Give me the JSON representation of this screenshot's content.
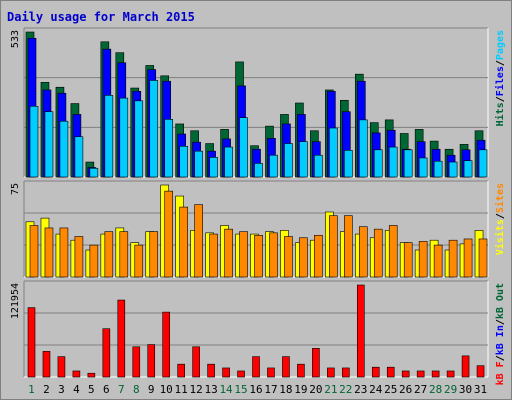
{
  "title": "Daily usage for March 2015",
  "colors": {
    "hits": "#006633",
    "files": "#0000ff",
    "pages": "#00ccff",
    "visits": "#ffff00",
    "sites": "#ff8800",
    "kbin": "#ff0000",
    "label_dark": "#000000",
    "label_green": "#006633",
    "plot_bg": "#c0c0c0"
  },
  "chart_data": [
    {
      "type": "bar",
      "name": "top",
      "ymax_label": "533",
      "ylim": [
        0,
        533
      ],
      "legend_right": [
        {
          "text": "Hits",
          "color": "#006633"
        },
        {
          "text": "/",
          "color": "#000000"
        },
        {
          "text": "Files",
          "color": "#0000ff"
        },
        {
          "text": "/",
          "color": "#000000"
        },
        {
          "text": "Pages",
          "color": "#00ccff"
        }
      ],
      "categories": [
        "1",
        "2",
        "3",
        "4",
        "5",
        "6",
        "7",
        "8",
        "9",
        "10",
        "11",
        "12",
        "13",
        "14",
        "15",
        "16",
        "17",
        "18",
        "19",
        "20",
        "21",
        "22",
        "23",
        "24",
        "25",
        "26",
        "27",
        "28",
        "29",
        "30",
        "31"
      ],
      "series": [
        {
          "name": "Hits",
          "color": "#006633",
          "values": [
            533,
            348,
            330,
            270,
            55,
            497,
            457,
            327,
            410,
            372,
            195,
            170,
            123,
            175,
            423,
            115,
            187,
            230,
            272,
            170,
            320,
            282,
            378,
            200,
            210,
            160,
            175,
            132,
            102,
            120,
            170
          ]
        },
        {
          "name": "Files",
          "color": "#0000ff",
          "values": [
            510,
            320,
            308,
            230,
            35,
            470,
            420,
            315,
            395,
            352,
            158,
            128,
            95,
            140,
            335,
            102,
            142,
            195,
            230,
            130,
            315,
            240,
            352,
            162,
            172,
            102,
            130,
            102,
            80,
            100,
            135
          ]
        },
        {
          "name": "Pages",
          "color": "#00ccff",
          "values": [
            260,
            240,
            205,
            148,
            32,
            300,
            290,
            280,
            355,
            212,
            113,
            95,
            72,
            110,
            218,
            50,
            80,
            123,
            130,
            80,
            180,
            98,
            210,
            100,
            110,
            100,
            70,
            58,
            55,
            60,
            100
          ]
        }
      ]
    },
    {
      "type": "bar",
      "name": "middle",
      "ymax_label": "75",
      "ylim": [
        0,
        75
      ],
      "legend_right": [
        {
          "text": "Visits",
          "color": "#ffff00"
        },
        {
          "text": "/",
          "color": "#000000"
        },
        {
          "text": "Sites",
          "color": "#ff8800"
        }
      ],
      "categories": [
        "1",
        "2",
        "3",
        "4",
        "5",
        "6",
        "7",
        "8",
        "9",
        "10",
        "11",
        "12",
        "13",
        "14",
        "15",
        "16",
        "17",
        "18",
        "19",
        "20",
        "21",
        "22",
        "23",
        "24",
        "25",
        "26",
        "27",
        "28",
        "29",
        "30",
        "31"
      ],
      "series": [
        {
          "name": "Visits",
          "color": "#ffff00",
          "values": [
            45,
            48,
            35,
            30,
            22,
            35,
            40,
            28,
            37,
            75,
            66,
            38,
            36,
            42,
            35,
            35,
            37,
            38,
            28,
            30,
            53,
            37,
            35,
            32,
            38,
            28,
            22,
            30,
            22,
            27,
            38
          ]
        },
        {
          "name": "Sites",
          "color": "#ff8800",
          "values": [
            42,
            40,
            40,
            33,
            26,
            37,
            37,
            26,
            37,
            70,
            57,
            59,
            35,
            39,
            37,
            34,
            36,
            33,
            32,
            34,
            50,
            50,
            41,
            39,
            42,
            28,
            29,
            26,
            30,
            31,
            31
          ]
        }
      ]
    },
    {
      "type": "bar",
      "name": "bottom",
      "ymax_label": "121954",
      "ylim": [
        0,
        121954
      ],
      "legend_right": [
        {
          "text": "kB F",
          "color": "#ff0000"
        },
        {
          "text": "/",
          "color": "#000000"
        },
        {
          "text": "kB In",
          "color": "#0000ff"
        },
        {
          "text": "/",
          "color": "#000000"
        },
        {
          "text": "kB Out",
          "color": "#006633"
        }
      ],
      "categories": [
        "1",
        "2",
        "3",
        "4",
        "5",
        "6",
        "7",
        "8",
        "9",
        "10",
        "11",
        "12",
        "13",
        "14",
        "15",
        "16",
        "17",
        "18",
        "19",
        "20",
        "21",
        "22",
        "23",
        "24",
        "25",
        "26",
        "27",
        "28",
        "29",
        "30",
        "31"
      ],
      "series": [
        {
          "name": "kB F",
          "color": "#ff0000",
          "values": [
            92000,
            34000,
            27000,
            8000,
            5000,
            64000,
            102000,
            40000,
            43000,
            86000,
            17000,
            40000,
            17000,
            12000,
            8000,
            27000,
            12000,
            27000,
            17000,
            38000,
            12000,
            12000,
            121954,
            13000,
            13000,
            8000,
            8000,
            8000,
            8000,
            28000,
            15000
          ]
        }
      ]
    }
  ],
  "x_labels": [
    {
      "text": "1",
      "weekend": true
    },
    {
      "text": "2",
      "weekend": false
    },
    {
      "text": "3",
      "weekend": false
    },
    {
      "text": "4",
      "weekend": false
    },
    {
      "text": "5",
      "weekend": false
    },
    {
      "text": "6",
      "weekend": false
    },
    {
      "text": "7",
      "weekend": true
    },
    {
      "text": "8",
      "weekend": true
    },
    {
      "text": "9",
      "weekend": false
    },
    {
      "text": "10",
      "weekend": false
    },
    {
      "text": "11",
      "weekend": false
    },
    {
      "text": "12",
      "weekend": false
    },
    {
      "text": "13",
      "weekend": false
    },
    {
      "text": "14",
      "weekend": true
    },
    {
      "text": "15",
      "weekend": true
    },
    {
      "text": "16",
      "weekend": false
    },
    {
      "text": "17",
      "weekend": false
    },
    {
      "text": "18",
      "weekend": false
    },
    {
      "text": "19",
      "weekend": false
    },
    {
      "text": "20",
      "weekend": false
    },
    {
      "text": "21",
      "weekend": true
    },
    {
      "text": "22",
      "weekend": true
    },
    {
      "text": "23",
      "weekend": false
    },
    {
      "text": "24",
      "weekend": false
    },
    {
      "text": "25",
      "weekend": false
    },
    {
      "text": "26",
      "weekend": false
    },
    {
      "text": "27",
      "weekend": false
    },
    {
      "text": "28",
      "weekend": true
    },
    {
      "text": "29",
      "weekend": true
    },
    {
      "text": "30",
      "weekend": false
    },
    {
      "text": "31",
      "weekend": false
    }
  ]
}
